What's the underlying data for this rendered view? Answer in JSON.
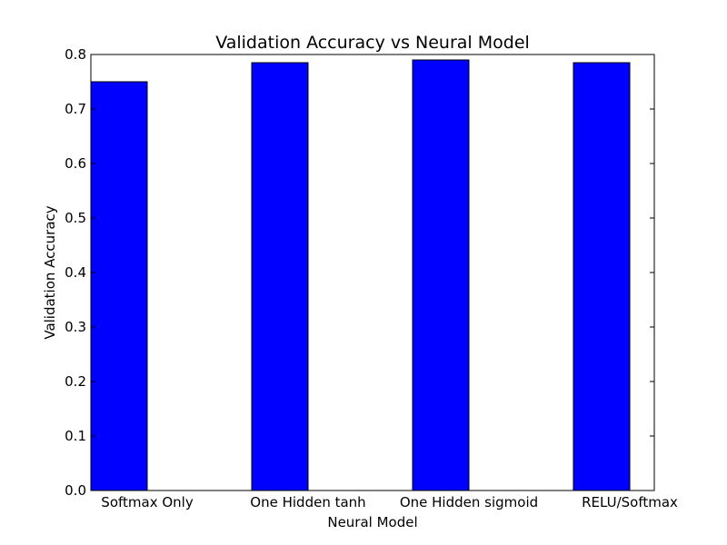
{
  "chart_data": {
    "type": "bar",
    "title": "Validation Accuracy vs Neural Model",
    "xlabel": "Neural Model",
    "ylabel": "Validation Accuracy",
    "categories": [
      "Softmax Only",
      "One Hidden tanh",
      "One Hidden sigmoid",
      "RELU/Softmax"
    ],
    "values": [
      0.75,
      0.785,
      0.79,
      0.785
    ],
    "ylim": [
      0.0,
      0.8
    ],
    "yticks": [
      "0.0",
      "0.1",
      "0.2",
      "0.3",
      "0.4",
      "0.5",
      "0.6",
      "0.7",
      "0.8"
    ],
    "grid": false,
    "bar_color": "#0000ff",
    "edge_color": "#000000"
  }
}
